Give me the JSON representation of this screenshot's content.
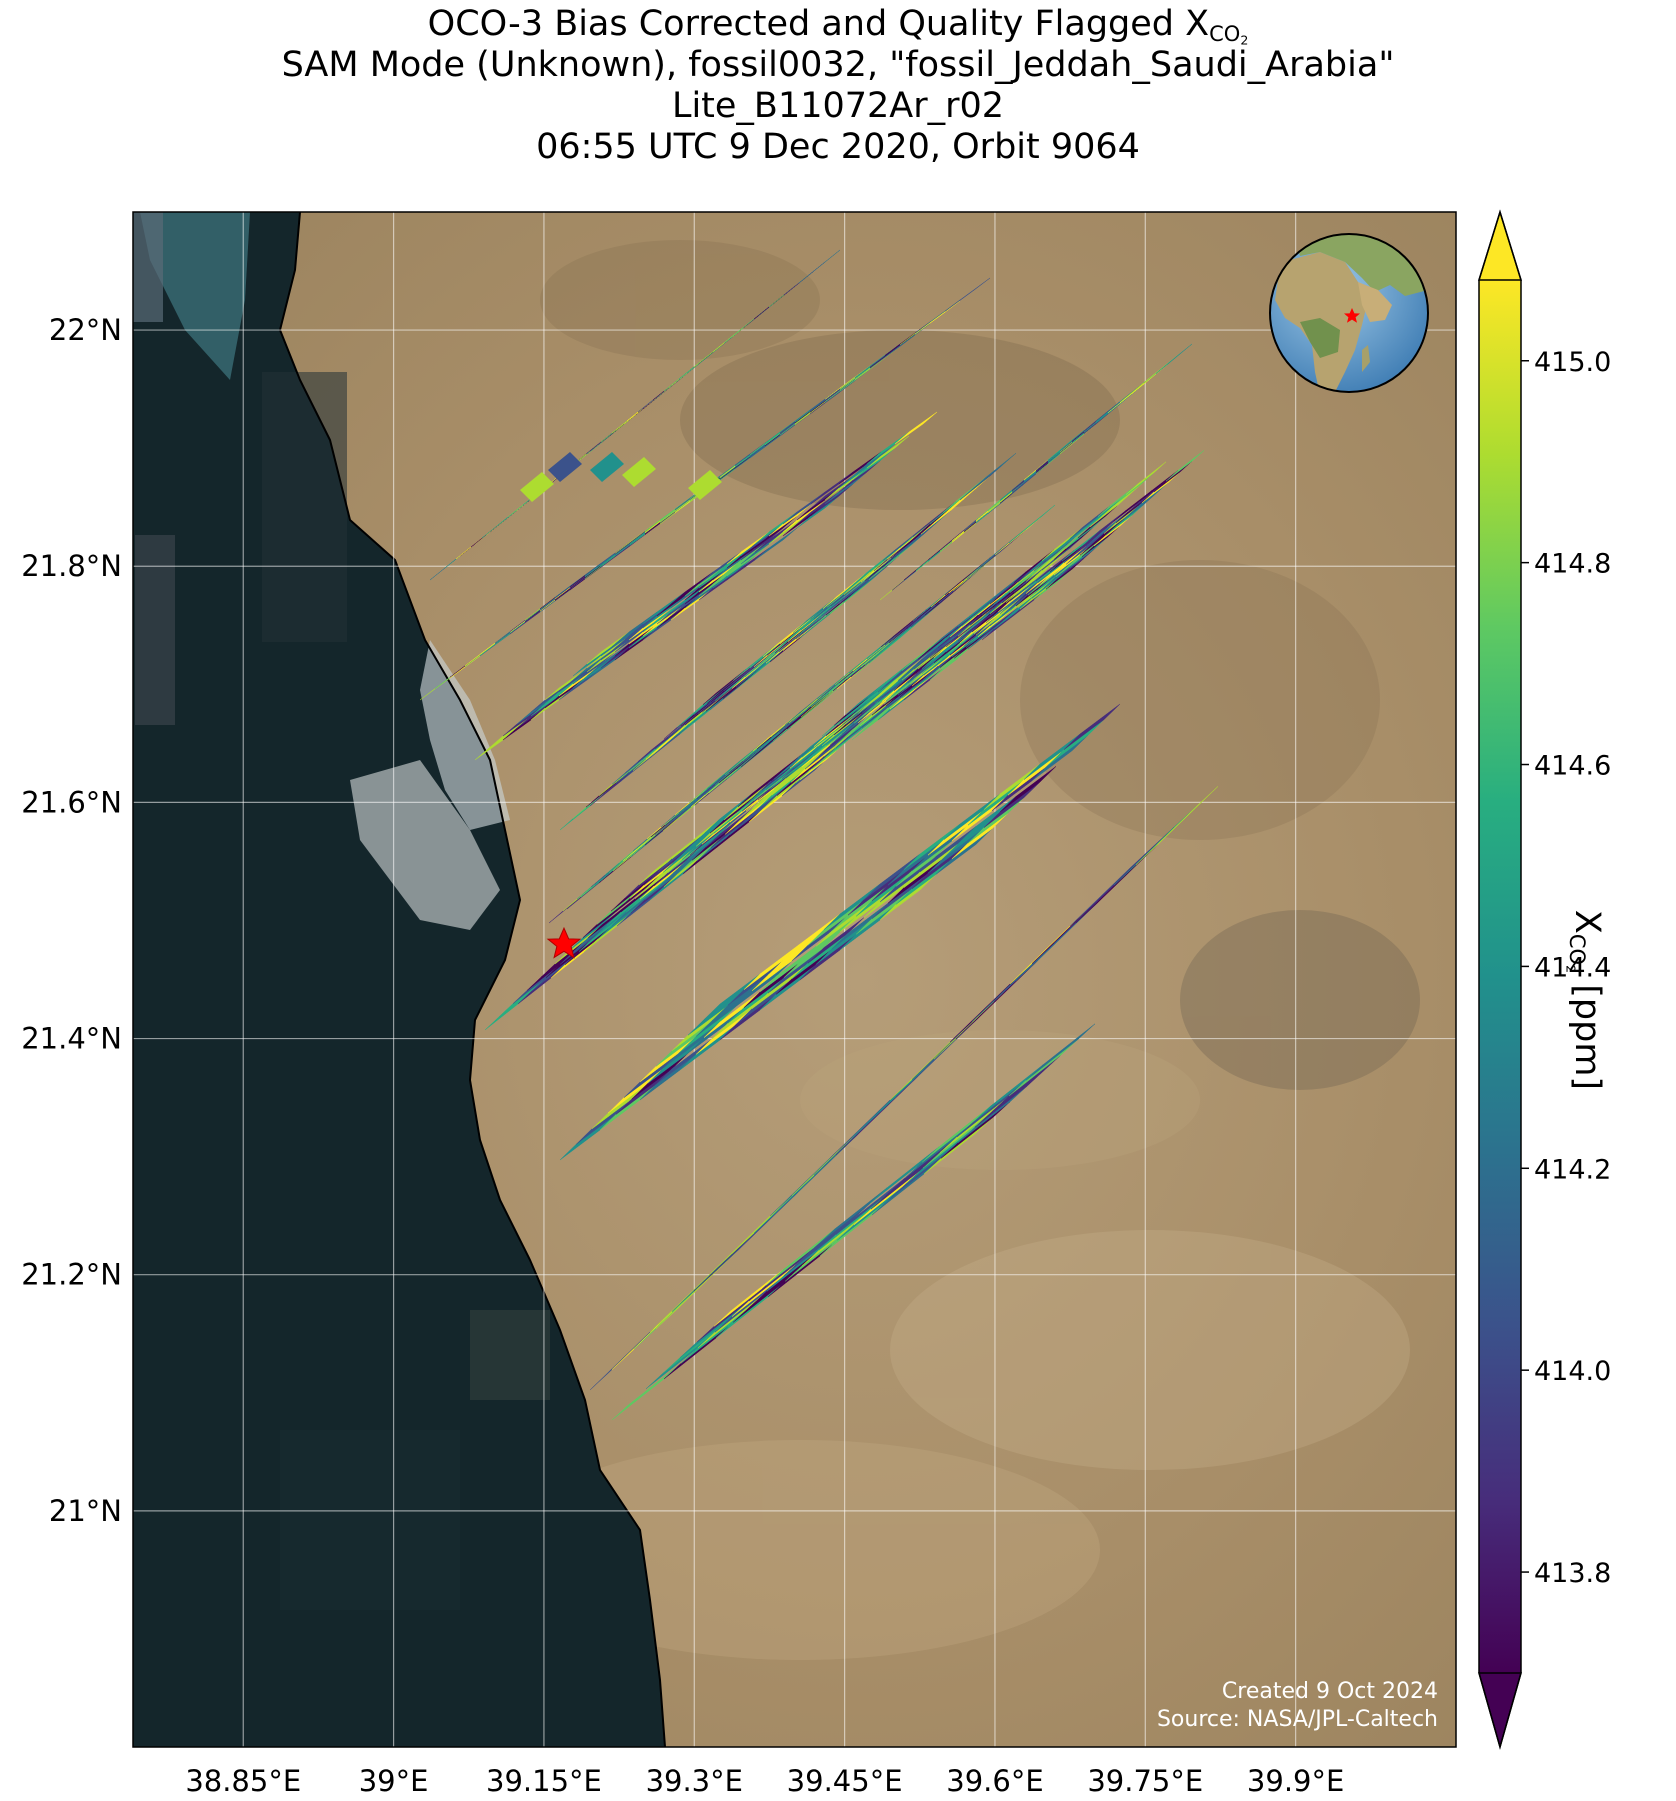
{
  "title": {
    "line1_prefix": "OCO-3 Bias Corrected and Quality Flagged X",
    "line1_sub": "CO",
    "line1_sub2": "2",
    "line2": "SAM Mode (Unknown), fossil0032, \"fossil_Jeddah_Saudi_Arabia\"",
    "line3": "Lite_B11072Ar_r02",
    "line4": "06:55 UTC 9 Dec 2020, Orbit 9064"
  },
  "map": {
    "lon_range": [
      38.74,
      40.06
    ],
    "lat_range": [
      20.8,
      22.1
    ],
    "lon_ticks": [
      {
        "value": 38.85,
        "label": "38.85°E"
      },
      {
        "value": 39.0,
        "label": "39°E"
      },
      {
        "value": 39.15,
        "label": "39.15°E"
      },
      {
        "value": 39.3,
        "label": "39.3°E"
      },
      {
        "value": 39.45,
        "label": "39.45°E"
      },
      {
        "value": 39.6,
        "label": "39.6°E"
      },
      {
        "value": 39.75,
        "label": "39.75°E"
      },
      {
        "value": 39.9,
        "label": "39.9°E"
      }
    ],
    "lat_ticks": [
      {
        "value": 21.0,
        "label": "21°N"
      },
      {
        "value": 21.2,
        "label": "21.2°N"
      },
      {
        "value": 21.4,
        "label": "21.4°N"
      },
      {
        "value": 21.6,
        "label": "21.6°N"
      },
      {
        "value": 21.8,
        "label": "21.8°N"
      },
      {
        "value": 22.0,
        "label": "22°N"
      }
    ],
    "target_marker": {
      "lon": 39.17,
      "lat": 21.48,
      "symbol": "star",
      "color": "#ff0000"
    },
    "grid": true,
    "basemap": "satellite imagery",
    "inset": {
      "type": "globe",
      "marker_color": "#ff0000",
      "position": "top-right"
    }
  },
  "colorbar": {
    "colormap": "viridis",
    "min": 413.7,
    "max": 415.08,
    "extend": "both",
    "ticks": [
      {
        "value": 413.8,
        "label": "413.8"
      },
      {
        "value": 414.0,
        "label": "414.0"
      },
      {
        "value": 414.2,
        "label": "414.2"
      },
      {
        "value": 414.4,
        "label": "414.4"
      },
      {
        "value": 414.6,
        "label": "414.6"
      },
      {
        "value": 414.8,
        "label": "414.8"
      },
      {
        "value": 415.0,
        "label": "415.0"
      }
    ],
    "label_prefix": "X",
    "label_sub": "CO",
    "label_sub2": "2",
    "label_suffix": " [ppm]"
  },
  "credits": {
    "created": "Created 9 Oct 2024",
    "source": "Source: NASA/JPL-Caltech"
  }
}
